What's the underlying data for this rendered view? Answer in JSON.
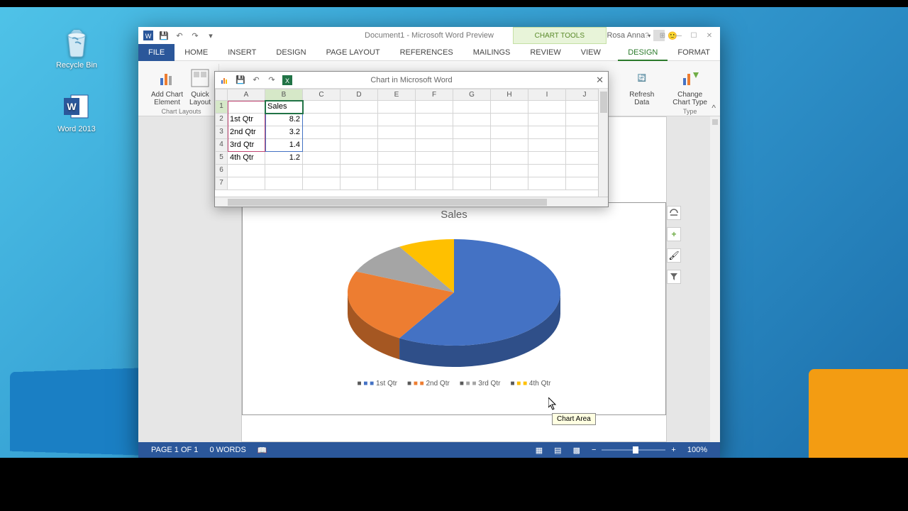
{
  "desktop_icons": {
    "recycle": "Recycle Bin",
    "word": "Word 2013"
  },
  "word": {
    "title": "Document1 - Microsoft Word Preview",
    "chart_tools_label": "CHART TOOLS",
    "user": "Rosa Anna",
    "tabs": {
      "file": "FILE",
      "home": "HOME",
      "insert": "INSERT",
      "design": "DESIGN",
      "page_layout": "PAGE LAYOUT",
      "references": "REFERENCES",
      "mailings": "MAILINGS",
      "review": "REVIEW",
      "view": "VIEW",
      "ct_design": "DESIGN",
      "ct_format": "FORMAT"
    },
    "ribbon": {
      "add_chart_element": "Add Chart\nElement",
      "quick_layout": "Quick\nLayout",
      "chart_layouts": "Chart Layouts",
      "refresh_data": "Refresh\nData",
      "change_chart_type": "Change\nChart Type",
      "type": "Type"
    },
    "status": {
      "page": "PAGE 1 OF 1",
      "words": "0 WORDS",
      "zoom": "100%"
    }
  },
  "excel": {
    "title": "Chart in Microsoft Word",
    "columns": [
      "A",
      "B",
      "C",
      "D",
      "E",
      "F",
      "G",
      "H",
      "I",
      "J"
    ],
    "header_b": "Sales",
    "rows": [
      {
        "a": "1st Qtr",
        "b": "8.2"
      },
      {
        "a": "2nd Qtr",
        "b": "3.2"
      },
      {
        "a": "3rd Qtr",
        "b": "1.4"
      },
      {
        "a": "4th Qtr",
        "b": "1.2"
      }
    ]
  },
  "chart": {
    "type": "pie",
    "title": "Sales",
    "categories": [
      "1st Qtr",
      "2nd Qtr",
      "3rd Qtr",
      "4th Qtr"
    ],
    "values": [
      8.2,
      3.2,
      1.4,
      1.2
    ],
    "colors": [
      "#4472c4",
      "#ed7d31",
      "#a5a5a5",
      "#ffc000"
    ],
    "title_color": "#595959",
    "title_fontsize": 15,
    "legend_fontsize": 10,
    "legend_color": "#595959"
  },
  "tooltip": "Chart Area"
}
